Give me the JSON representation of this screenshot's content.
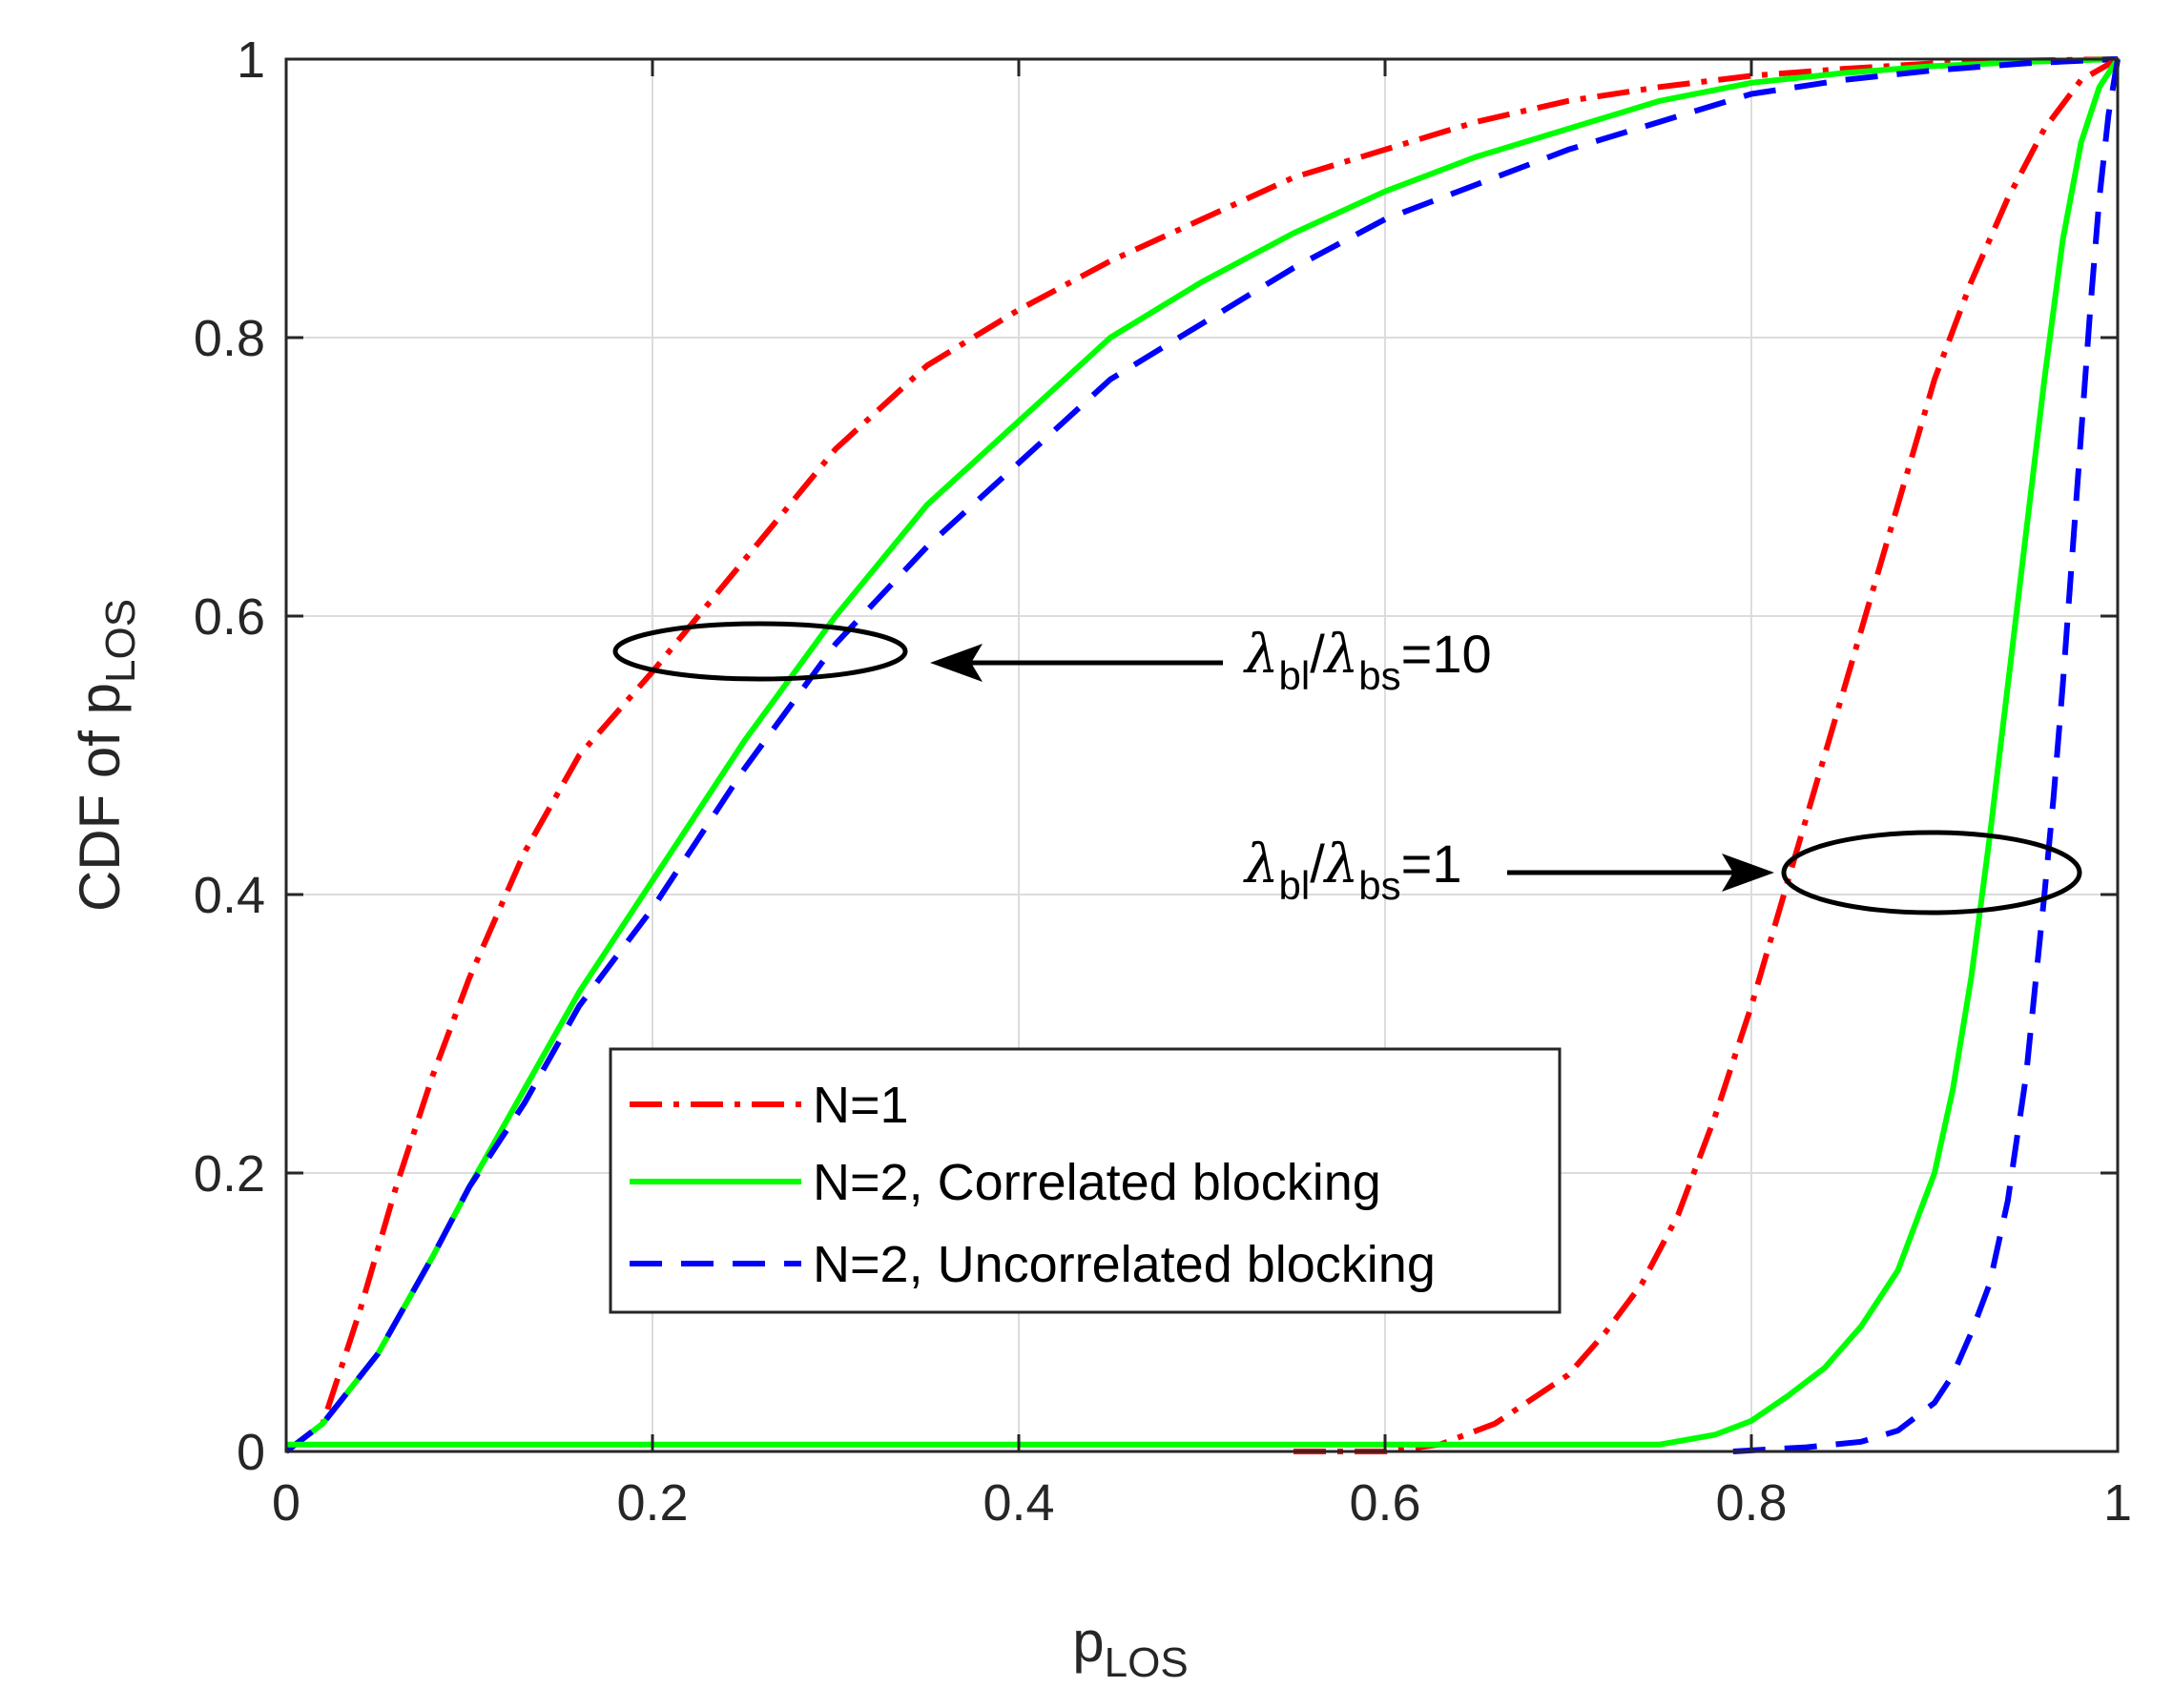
{
  "chart_data": {
    "type": "line",
    "title": "",
    "xlabel": "p",
    "xlabel_subscript": "LOS",
    "ylabel": "CDF of p",
    "ylabel_subscript": "LOS",
    "xlim": [
      0,
      1
    ],
    "ylim": [
      0,
      1
    ],
    "grid": true,
    "x_ticks": [
      "0",
      "0.2",
      "0.4",
      "0.6",
      "0.8",
      "1"
    ],
    "y_ticks": [
      "0",
      "0.2",
      "0.4",
      "0.6",
      "0.8",
      "1"
    ],
    "legend_location": "lower-center",
    "series": [
      {
        "name": "N=1",
        "group": "λbl/λbs=10",
        "style": "dash-dot",
        "color": "#ff0000",
        "x": [
          0,
          0.02,
          0.04,
          0.06,
          0.08,
          0.1,
          0.13,
          0.16,
          0.2,
          0.25,
          0.3,
          0.35,
          0.4,
          0.45,
          0.5,
          0.55,
          0.6,
          0.65,
          0.7,
          0.75,
          0.8,
          0.85,
          0.9,
          0.95,
          1.0
        ],
        "y": [
          0,
          0.02,
          0.1,
          0.19,
          0.27,
          0.34,
          0.43,
          0.5,
          0.56,
          0.64,
          0.72,
          0.78,
          0.82,
          0.855,
          0.885,
          0.915,
          0.935,
          0.955,
          0.97,
          0.98,
          0.988,
          0.993,
          0.997,
          0.999,
          1.0
        ]
      },
      {
        "name": "N=2, Correlated blocking",
        "group": "λbl/λbs=10",
        "style": "solid",
        "color": "#00ff00",
        "x": [
          0,
          0.02,
          0.05,
          0.08,
          0.1,
          0.13,
          0.16,
          0.2,
          0.25,
          0.3,
          0.35,
          0.4,
          0.45,
          0.5,
          0.55,
          0.6,
          0.65,
          0.7,
          0.75,
          0.8,
          0.85,
          0.9,
          0.95,
          1.0
        ],
        "y": [
          0,
          0.02,
          0.07,
          0.14,
          0.19,
          0.26,
          0.33,
          0.41,
          0.51,
          0.6,
          0.68,
          0.74,
          0.8,
          0.84,
          0.875,
          0.905,
          0.93,
          0.95,
          0.97,
          0.983,
          0.99,
          0.995,
          0.998,
          1.0
        ]
      },
      {
        "name": "N=2, Uncorrelated blocking",
        "group": "λbl/λbs=10",
        "style": "dashed",
        "color": "#0000ff",
        "x": [
          0,
          0.02,
          0.05,
          0.08,
          0.1,
          0.13,
          0.16,
          0.2,
          0.25,
          0.3,
          0.35,
          0.4,
          0.45,
          0.5,
          0.55,
          0.6,
          0.65,
          0.7,
          0.75,
          0.8,
          0.85,
          0.9,
          0.95,
          1.0
        ],
        "y": [
          0,
          0.02,
          0.07,
          0.14,
          0.19,
          0.25,
          0.32,
          0.39,
          0.49,
          0.58,
          0.65,
          0.71,
          0.77,
          0.81,
          0.85,
          0.885,
          0.91,
          0.935,
          0.955,
          0.975,
          0.985,
          0.992,
          0.997,
          1.0
        ]
      },
      {
        "name": "N=1",
        "group": "λbl/λbs=1",
        "style": "dash-dot",
        "color": "#ff0000",
        "x": [
          0.55,
          0.6,
          0.63,
          0.66,
          0.7,
          0.72,
          0.74,
          0.76,
          0.78,
          0.8,
          0.82,
          0.84,
          0.86,
          0.88,
          0.9,
          0.92,
          0.94,
          0.96,
          0.98,
          1.0
        ],
        "y": [
          0,
          0,
          0.005,
          0.02,
          0.055,
          0.085,
          0.12,
          0.17,
          0.24,
          0.32,
          0.41,
          0.5,
          0.59,
          0.68,
          0.77,
          0.84,
          0.9,
          0.95,
          0.985,
          1.0
        ]
      },
      {
        "name": "N=2, Correlated blocking",
        "group": "λbl/λbs=1",
        "style": "solid",
        "color": "#00ff00",
        "x": [
          0,
          0.75,
          0.78,
          0.8,
          0.82,
          0.84,
          0.86,
          0.88,
          0.9,
          0.91,
          0.92,
          0.93,
          0.94,
          0.95,
          0.96,
          0.97,
          0.98,
          0.99,
          1.0
        ],
        "y": [
          0.005,
          0.005,
          0.012,
          0.022,
          0.04,
          0.06,
          0.09,
          0.13,
          0.2,
          0.26,
          0.34,
          0.44,
          0.55,
          0.66,
          0.77,
          0.87,
          0.94,
          0.98,
          1.0
        ]
      },
      {
        "name": "N=2, Uncorrelated blocking",
        "group": "λbl/λbs=1",
        "style": "dashed",
        "color": "#0000ff",
        "x": [
          0.79,
          0.83,
          0.86,
          0.88,
          0.9,
          0.91,
          0.92,
          0.93,
          0.94,
          0.95,
          0.96,
          0.965,
          0.97,
          0.975,
          0.98,
          0.985,
          0.99,
          0.995,
          1.0
        ],
        "y": [
          0,
          0.003,
          0.007,
          0.015,
          0.035,
          0.055,
          0.085,
          0.12,
          0.18,
          0.27,
          0.4,
          0.47,
          0.55,
          0.64,
          0.73,
          0.82,
          0.9,
          0.96,
          1.0
        ]
      }
    ],
    "legend": [
      {
        "label": "N=1",
        "style": "dash-dot",
        "color": "#ff0000"
      },
      {
        "label": "N=2, Correlated blocking",
        "style": "solid",
        "color": "#00ff00"
      },
      {
        "label": "N=2, Uncorrelated blocking",
        "style": "dashed",
        "color": "#0000ff"
      }
    ],
    "annotations": [
      {
        "symbol": "λ",
        "sub_numerator": "bl",
        "slash": "/",
        "sub_denominator": "bs",
        "value": "=10",
        "points_to": {
          "x": 0.26,
          "y": 0.575
        }
      },
      {
        "symbol": "λ",
        "sub_numerator": "bl",
        "slash": "/",
        "sub_denominator": "bs",
        "value": "=1",
        "points_to": {
          "x": 0.9,
          "y": 0.415
        }
      }
    ]
  }
}
